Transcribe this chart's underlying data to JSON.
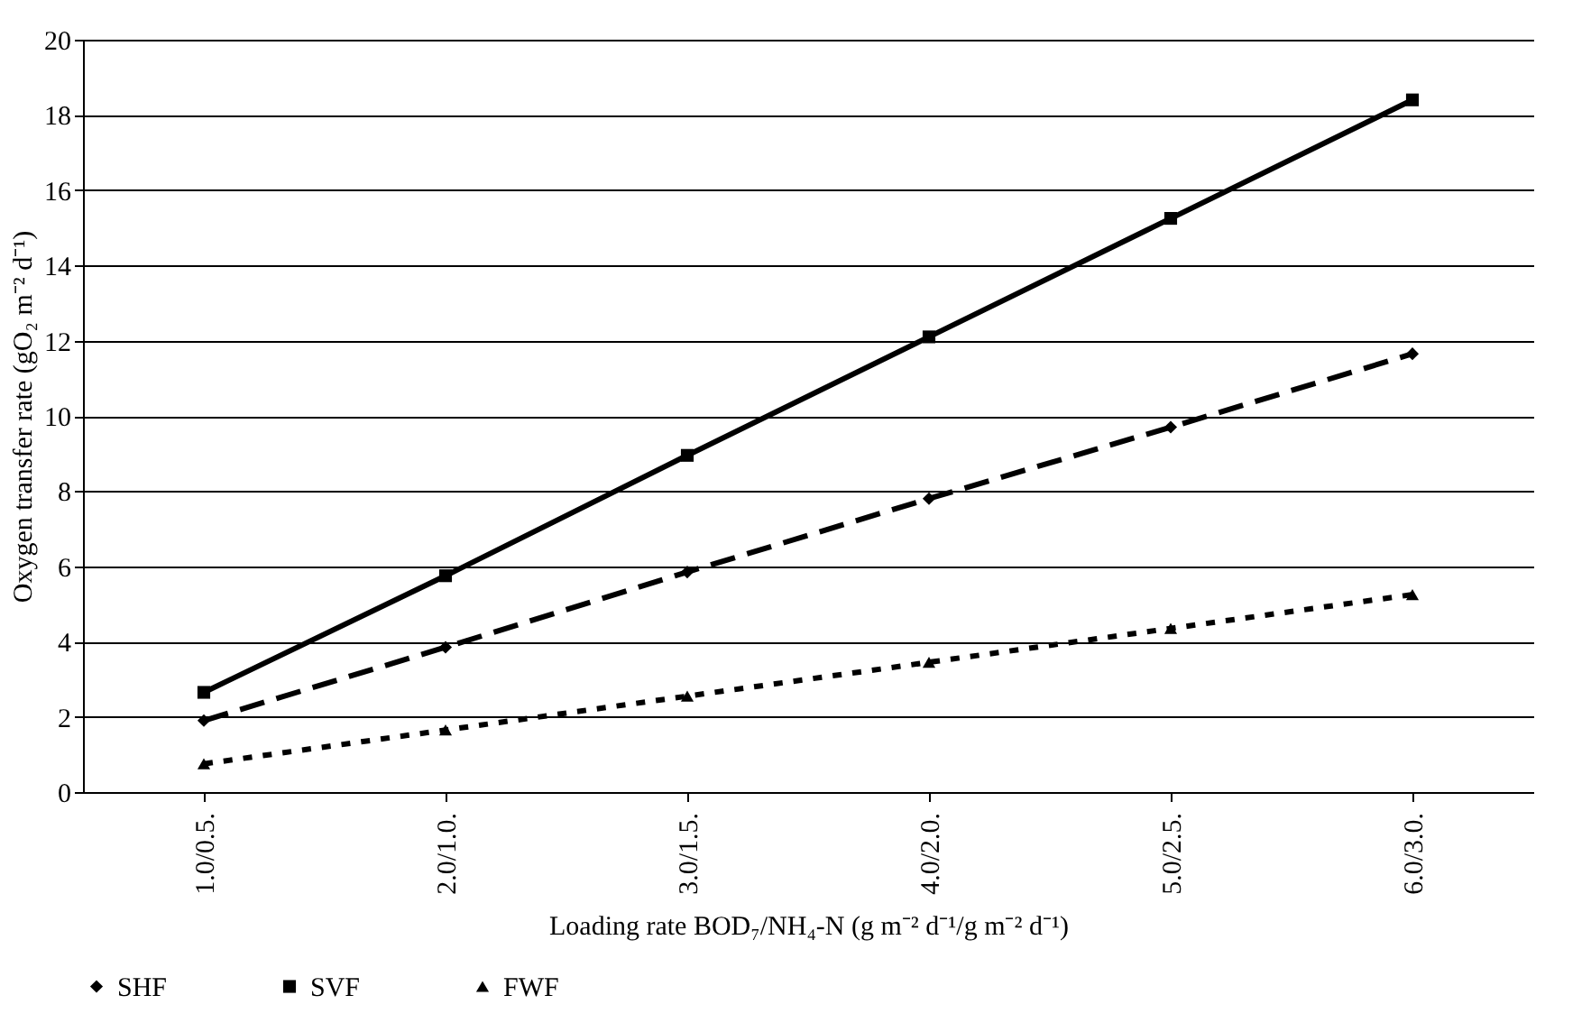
{
  "chart_data": {
    "type": "line",
    "xlabel": "Loading rate BOD₇/NH₄-N  (g m⁻² d⁻¹/g m⁻² d⁻¹)",
    "ylabel": "Oxygen transfer rate (gO₂ m⁻² d⁻¹)",
    "categories": [
      "1.0/0.5.",
      "2.0/1.0.",
      "3.0/1.5.",
      "4.0/2.0.",
      "5.0/2.5.",
      "6.0/3.0."
    ],
    "series": [
      {
        "name": "SHF",
        "color": "#000000",
        "marker": "diamond",
        "line_style": "dashed",
        "values": [
          1.9,
          3.85,
          5.85,
          7.8,
          9.7,
          11.65
        ]
      },
      {
        "name": "SVF",
        "color": "#000000",
        "marker": "square",
        "line_style": "solid",
        "values": [
          2.65,
          5.75,
          8.95,
          12.1,
          15.25,
          18.4
        ]
      },
      {
        "name": "FWF",
        "color": "#000000",
        "marker": "triangle",
        "line_style": "dotted",
        "values": [
          0.75,
          1.65,
          2.55,
          3.45,
          4.35,
          5.25
        ]
      }
    ],
    "ylim": [
      0,
      20
    ],
    "yticks": [
      0,
      2,
      4,
      6,
      8,
      10,
      12,
      14,
      16,
      18,
      20
    ],
    "grid": "y",
    "legend": "bottom"
  }
}
